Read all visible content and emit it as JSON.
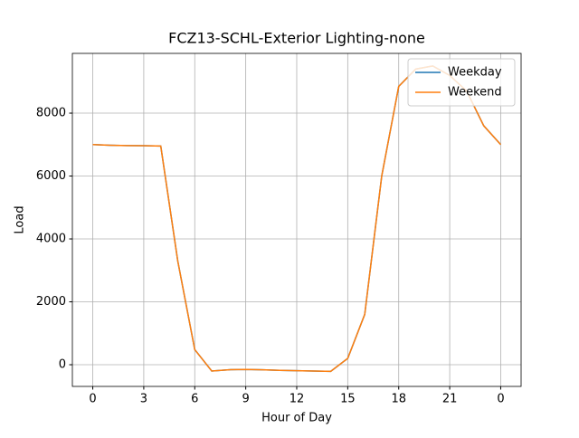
{
  "chart_data": {
    "type": "line",
    "title": "FCZ13-SCHL-Exterior Lighting-none",
    "x_label": "Hour of Day",
    "y_label": "Load",
    "x": [
      0,
      1,
      2,
      3,
      4,
      5,
      6,
      7,
      8,
      9,
      10,
      11,
      12,
      13,
      14,
      15,
      16,
      17,
      18,
      19,
      20,
      21,
      22,
      23,
      24
    ],
    "series": [
      {
        "name": "Weekday",
        "color": "#1f77b4",
        "values": [
          7000,
          6980,
          6970,
          6965,
          6955,
          3300,
          480,
          -200,
          -160,
          -150,
          -160,
          -180,
          -190,
          -200,
          -210,
          200,
          1600,
          6000,
          8850,
          9400,
          9500,
          9200,
          8700,
          7600,
          7000
        ]
      },
      {
        "name": "Weekend",
        "color": "#ff7f0e",
        "values": [
          7000,
          6980,
          6970,
          6965,
          6955,
          3300,
          480,
          -200,
          -160,
          -150,
          -160,
          -180,
          -190,
          -200,
          -210,
          200,
          1600,
          6000,
          8850,
          9400,
          9500,
          9200,
          8700,
          7600,
          7000
        ]
      }
    ],
    "xlim": [
      -1.2,
      25.2
    ],
    "xticks": [
      0,
      3,
      6,
      9,
      12,
      15,
      18,
      21,
      {
        "value": 24,
        "label": "0"
      }
    ],
    "ylim": [
      -690,
      9900
    ],
    "yticks": [
      0,
      2000,
      4000,
      6000,
      8000
    ],
    "grid": true,
    "legend": "upper-right"
  }
}
